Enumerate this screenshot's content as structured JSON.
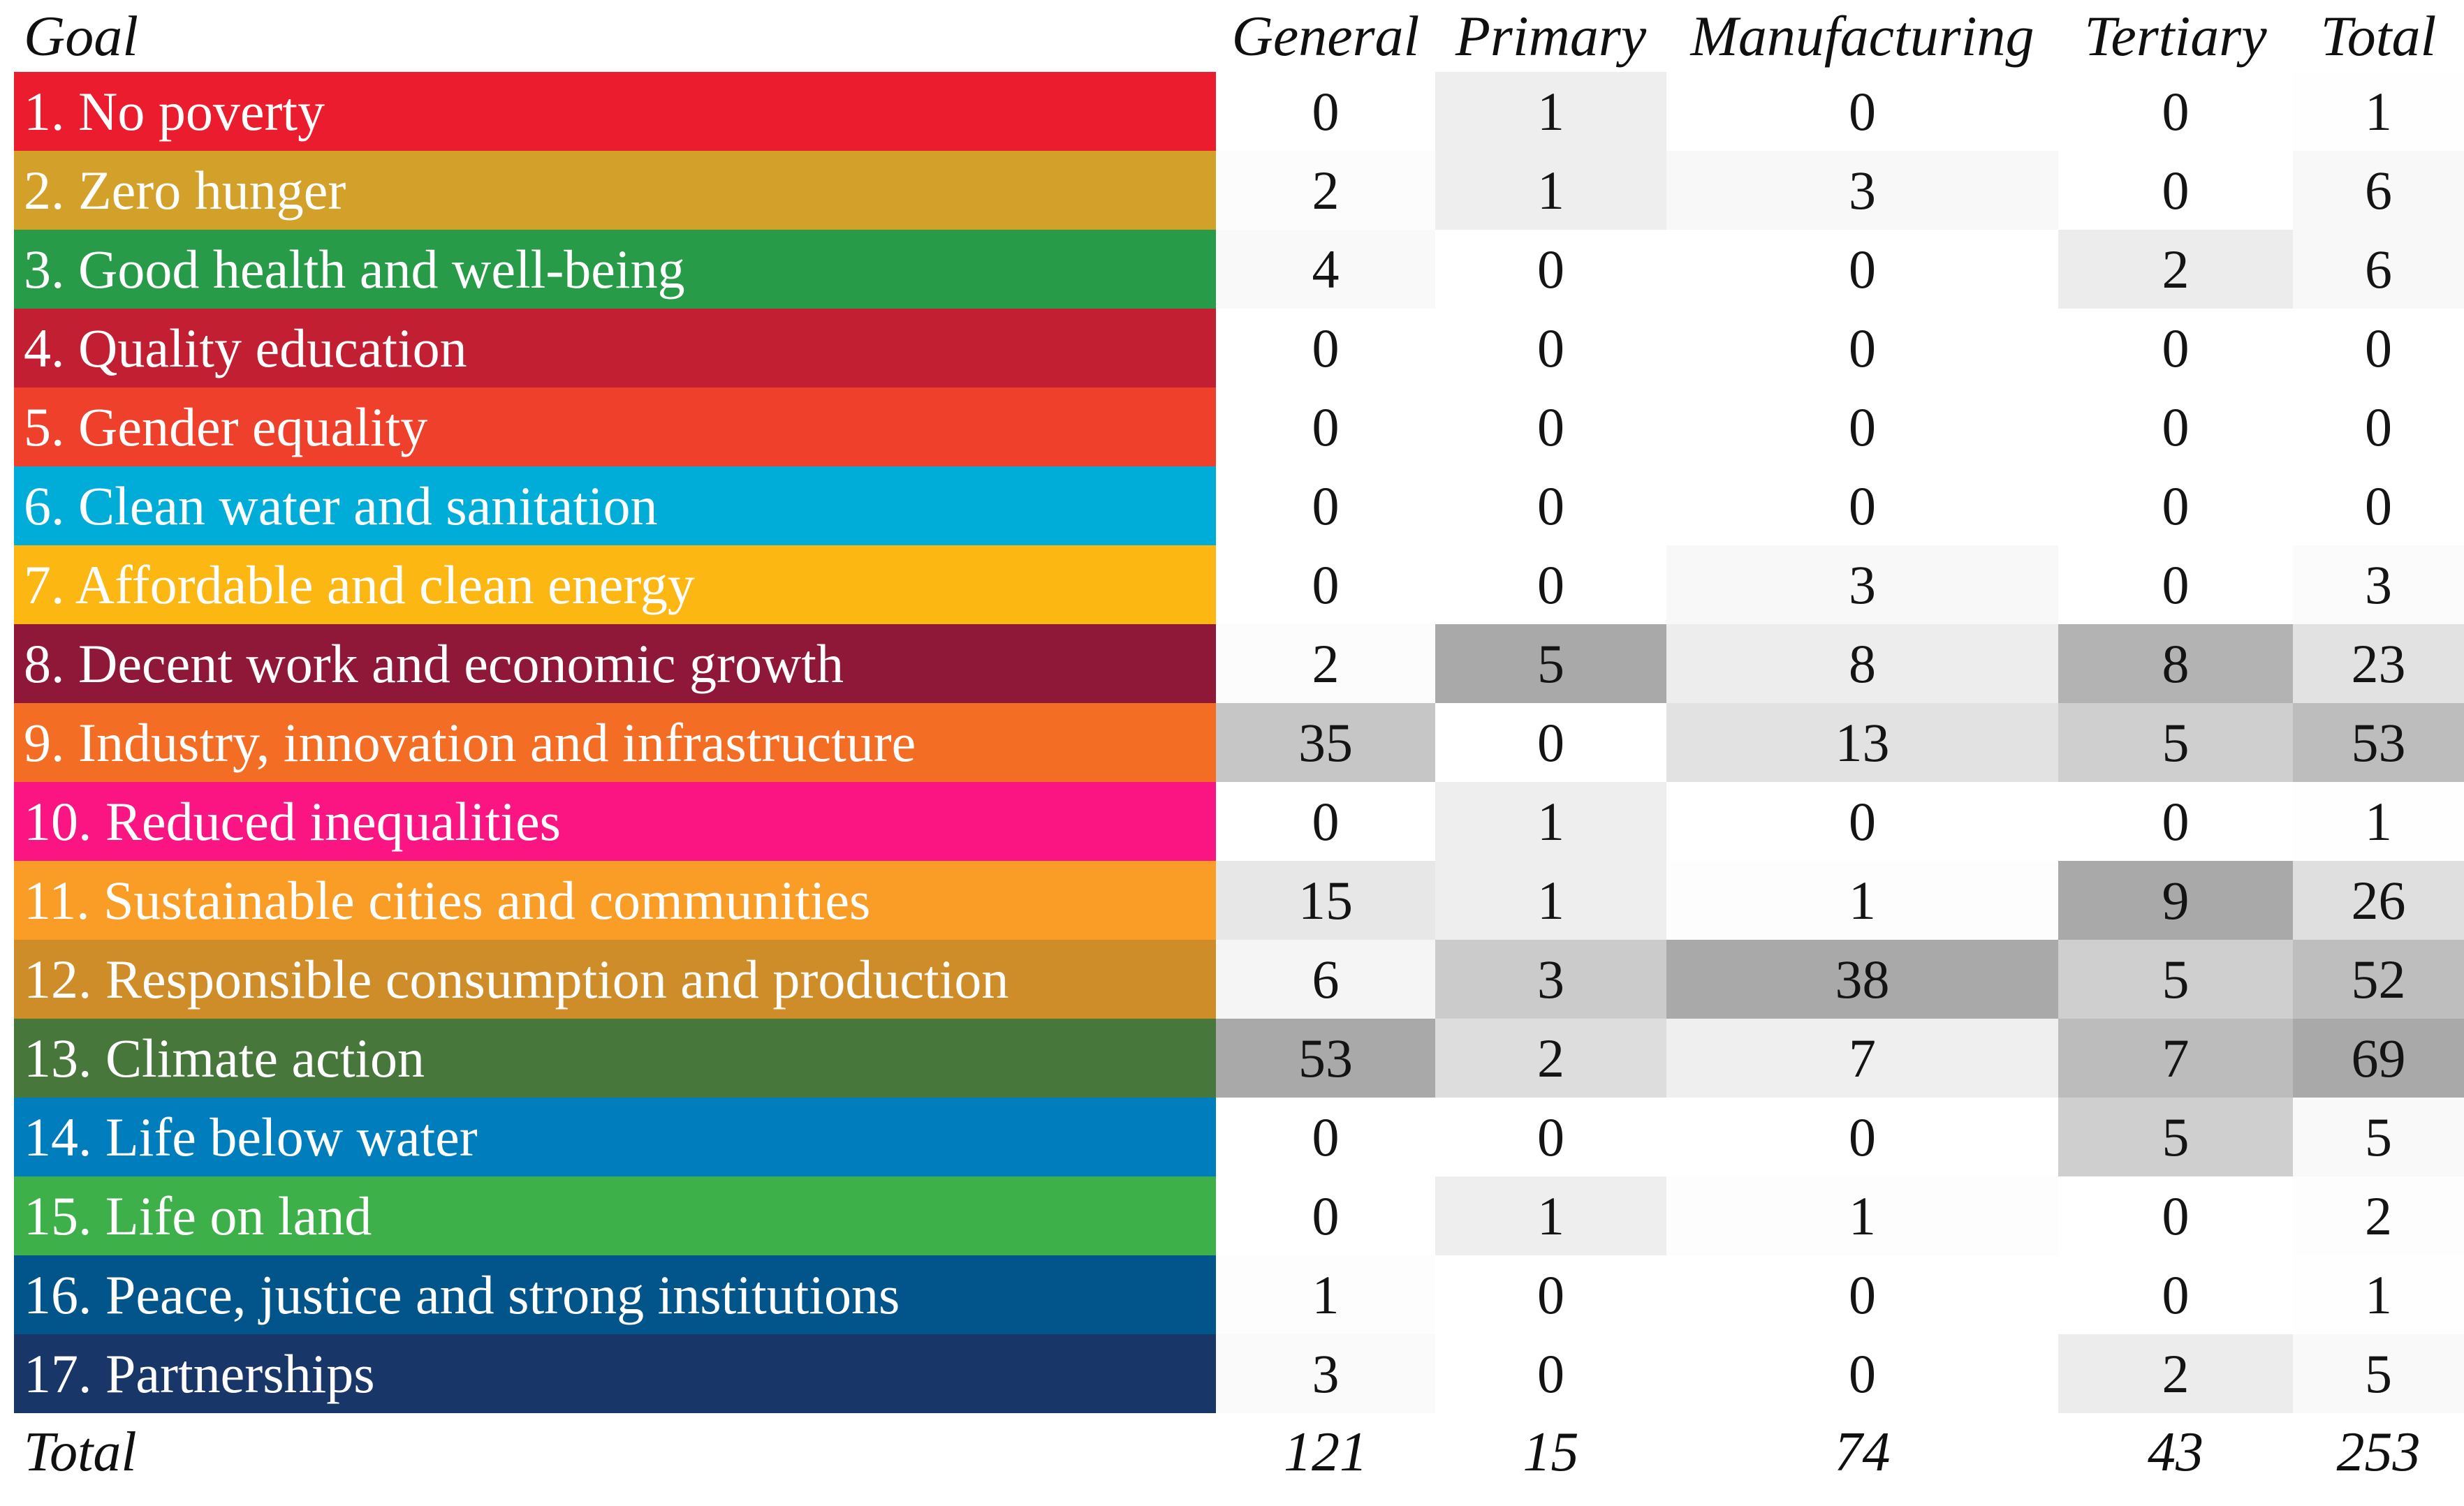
{
  "colors": {
    "background": "#ffffff",
    "number_text": "#141414",
    "label_text": "#ffffff",
    "max_shade_gray": "#a9a9a9"
  },
  "chart_data": {
    "type": "table",
    "corner_header": "Goal",
    "columns": [
      "General",
      "Primary",
      "Manufacturing",
      "Tertiary",
      "Total"
    ],
    "rows": [
      {
        "label": "1. No poverty",
        "color": "#EB1C2D",
        "values": [
          0,
          1,
          0,
          0,
          1
        ]
      },
      {
        "label": "2. Zero hunger",
        "color": "#D3A029",
        "values": [
          2,
          1,
          3,
          0,
          6
        ]
      },
      {
        "label": "3. Good health and well-being",
        "color": "#279B48",
        "values": [
          4,
          0,
          0,
          2,
          6
        ]
      },
      {
        "label": "4. Quality education",
        "color": "#C31F33",
        "values": [
          0,
          0,
          0,
          0,
          0
        ]
      },
      {
        "label": "5. Gender equality",
        "color": "#EF402B",
        "values": [
          0,
          0,
          0,
          0,
          0
        ]
      },
      {
        "label": "6. Clean water and sanitation",
        "color": "#00ADD8",
        "values": [
          0,
          0,
          0,
          0,
          0
        ]
      },
      {
        "label": "7. Affordable and clean energy",
        "color": "#FDB713",
        "values": [
          0,
          0,
          3,
          0,
          3
        ]
      },
      {
        "label": "8. Decent work and economic growth",
        "color": "#8F1838",
        "values": [
          2,
          5,
          8,
          8,
          23
        ]
      },
      {
        "label": "9. Industry, innovation and infrastructure",
        "color": "#F36D25",
        "values": [
          35,
          0,
          13,
          5,
          53
        ]
      },
      {
        "label": "10. Reduced inequalities",
        "color": "#FB1583",
        "values": [
          0,
          1,
          0,
          0,
          1
        ]
      },
      {
        "label": "11. Sustainable cities and communities",
        "color": "#F99D26",
        "values": [
          15,
          1,
          1,
          9,
          26
        ]
      },
      {
        "label": "12. Responsible consumption and production",
        "color": "#CF8D2A",
        "values": [
          6,
          3,
          38,
          5,
          52
        ]
      },
      {
        "label": "13. Climate action",
        "color": "#48773C",
        "values": [
          53,
          2,
          7,
          7,
          69
        ]
      },
      {
        "label": "14. Life below water",
        "color": "#007DBC",
        "values": [
          0,
          0,
          0,
          5,
          5
        ]
      },
      {
        "label": "15. Life on land",
        "color": "#3EB049",
        "values": [
          0,
          1,
          1,
          0,
          2
        ]
      },
      {
        "label": "16. Peace, justice and strong institutions",
        "color": "#02558B",
        "values": [
          1,
          0,
          0,
          0,
          1
        ]
      },
      {
        "label": "17. Partnerships",
        "color": "#183668",
        "values": [
          3,
          0,
          0,
          2,
          5
        ]
      }
    ],
    "totals": {
      "label": "Total",
      "values": [
        121,
        15,
        74,
        43,
        253
      ]
    },
    "column_max": [
      53,
      5,
      38,
      9,
      69
    ],
    "shading_note": "cell background gray is proportional to value divided by column max; zero = white; column max = #A9A9A9",
    "legend_position": "none",
    "grid": false
  }
}
